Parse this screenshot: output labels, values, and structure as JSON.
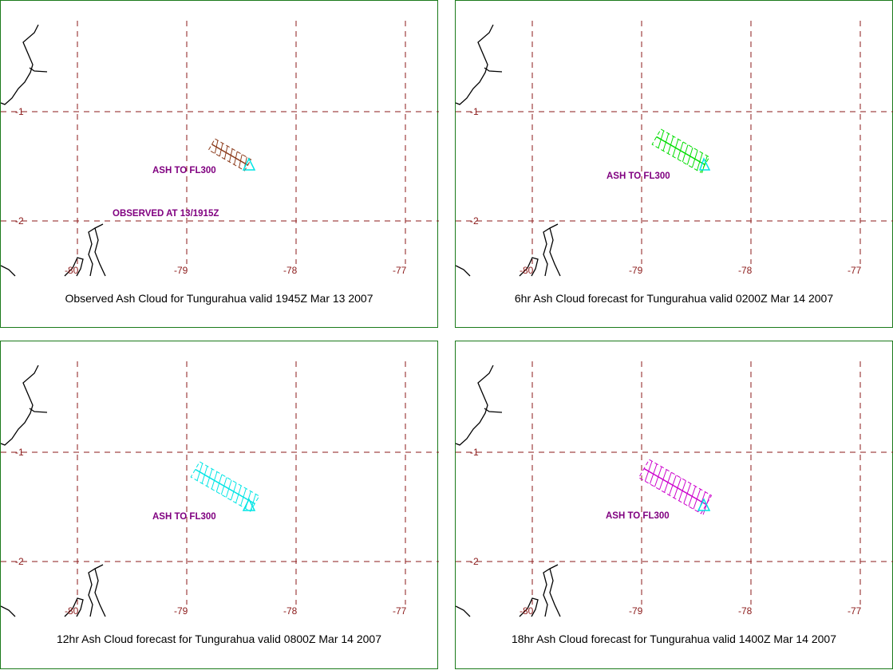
{
  "panels": [
    {
      "caption": "Observed Ash Cloud for Tungurahua valid 1945Z Mar 13 2007",
      "cloud_color": "#8b3a1a",
      "labels": [
        "ASH TO FL300",
        "OBSERVED AT 13/1915Z"
      ]
    },
    {
      "caption": "6hr Ash Cloud forecast for Tungurahua valid 0200Z Mar 14 2007",
      "cloud_color": "#00dd00",
      "labels": [
        "ASH TO FL300"
      ]
    },
    {
      "caption": "12hr Ash Cloud forecast for Tungurahua valid 0800Z Mar 14 2007",
      "cloud_color": "#00e5e5",
      "labels": [
        "ASH TO FL300"
      ]
    },
    {
      "caption": "18hr Ash Cloud forecast for Tungurahua valid 1400Z Mar 14 2007",
      "cloud_color": "#cc00cc",
      "labels": [
        "ASH TO FL300"
      ]
    }
  ],
  "grid": {
    "lat_labels": [
      "-1",
      "-2"
    ],
    "lon_labels": [
      "-80",
      "-79",
      "-78",
      "-77"
    ],
    "line_color": "#8b1a1a"
  },
  "coast_color": "#000000",
  "volcano_marker_color": "#00e5e5"
}
